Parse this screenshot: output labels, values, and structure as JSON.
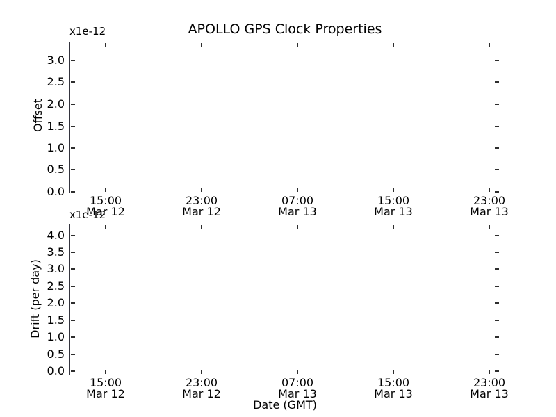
{
  "figure": {
    "title": "APOLLO GPS Clock Properties",
    "background_color": "#ffffff",
    "spine_color": "#33333d",
    "tick_color": "#2e2e2e",
    "text_color": "#000000"
  },
  "chart_data": [
    {
      "type": "line",
      "subplot": "top",
      "title": "APOLLO GPS Clock Properties",
      "ylabel": "Offset",
      "y_scale_offset_text": "x1e-12",
      "y_tick_labels": [
        "0.0",
        "0.5",
        "1.0",
        "1.5",
        "2.0",
        "2.5",
        "3.0"
      ],
      "ylim": [
        0.0,
        3.45
      ],
      "x_ticks": [
        {
          "time": "15:00",
          "date": "Mar 12"
        },
        {
          "time": "23:00",
          "date": "Mar 12"
        },
        {
          "time": "07:00",
          "date": "Mar 13"
        },
        {
          "time": "15:00",
          "date": "Mar 13"
        },
        {
          "time": "23:00",
          "date": "Mar 13"
        }
      ],
      "x_tick_interval_hours": 8,
      "xlim_estimate": [
        "Mar 12 12:00",
        "Mar 14 00:00"
      ],
      "grid": false,
      "legend": null,
      "series": []
    },
    {
      "type": "line",
      "subplot": "bottom",
      "ylabel": "Drift (per day)",
      "xlabel": "Date (GMT)",
      "y_scale_offset_text": "x1e-12",
      "y_tick_labels": [
        "0.0",
        "0.5",
        "1.0",
        "1.5",
        "2.0",
        "2.5",
        "3.0",
        "3.5",
        "4.0"
      ],
      "ylim": [
        -0.12,
        4.35
      ],
      "x_ticks": [
        {
          "time": "15:00",
          "date": "Mar 12"
        },
        {
          "time": "23:00",
          "date": "Mar 12"
        },
        {
          "time": "07:00",
          "date": "Mar 13"
        },
        {
          "time": "15:00",
          "date": "Mar 13"
        },
        {
          "time": "23:00",
          "date": "Mar 13"
        }
      ],
      "x_tick_interval_hours": 8,
      "xlim_estimate": [
        "Mar 12 12:00",
        "Mar 14 00:00"
      ],
      "grid": false,
      "legend": null,
      "series": []
    }
  ]
}
